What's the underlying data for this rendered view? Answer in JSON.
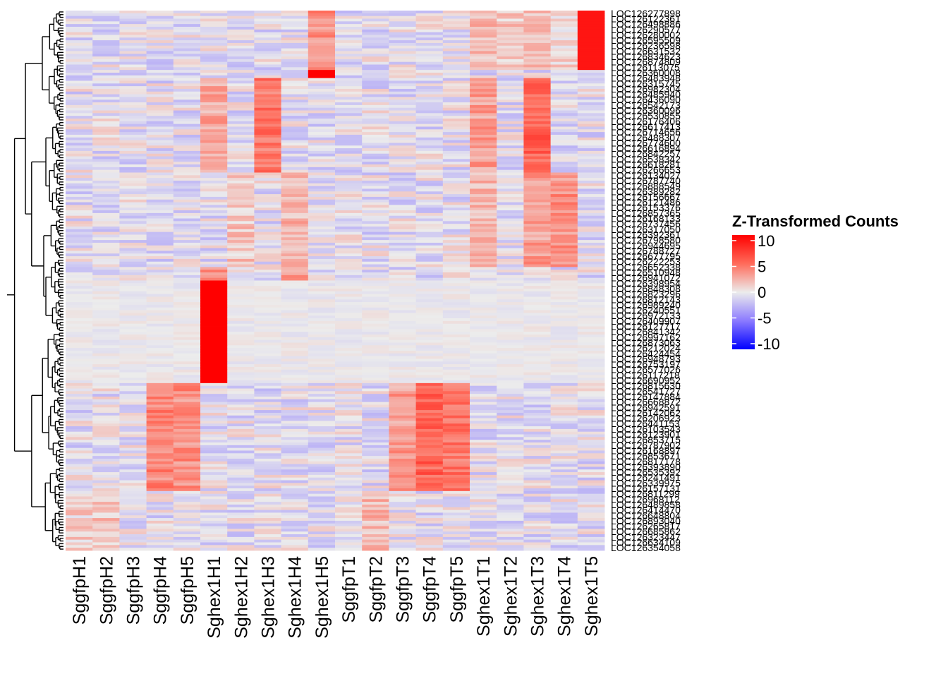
{
  "chart_data": {
    "type": "heatmap",
    "title": "",
    "xlabel": "",
    "ylabel": "",
    "columns": [
      "SggfpH1",
      "SggfpH2",
      "SggfpH3",
      "SggfpH4",
      "SggfpH5",
      "Sghex1H1",
      "Sghex1H2",
      "Sghex1H3",
      "Sghex1H4",
      "Sghex1H5",
      "SggfpT1",
      "SggfpT2",
      "SggfpT3",
      "SggfpT4",
      "SggfpT5",
      "Sghex1T1",
      "Sghex1T2",
      "Sghex1T3",
      "Sghex1T4",
      "Sghex1T5"
    ],
    "first_row_label": "LOC126277898",
    "last_row_label": "LOC126354058",
    "row_count": 200,
    "row_label_prefix": "LOC126",
    "row_label_note": "gene identifiers overlap and are mostly illegible; only the first and last are readable",
    "row_dendrogram": true,
    "legend": {
      "title": "Z-Transformed Counts",
      "ticks": [
        10,
        5,
        0,
        -5,
        -10
      ],
      "range": [
        -10,
        10
      ],
      "colors": {
        "low": "#0000ff",
        "mid": "#ececec",
        "high": "#ff0000"
      },
      "placement": "right"
    },
    "blocks": [
      {
        "rows": [
          0,
          22
        ],
        "high_columns": {
          "Sghex1T5": 9,
          "Sghex1H5": 3.5,
          "Sghex1T1": 2,
          "Sghex1T2": 1.5,
          "Sghex1T3": 2,
          "Sghex1T4": 1
        }
      },
      {
        "rows": [
          22,
          25
        ],
        "high_columns": {
          "Sghex1H5": 10
        }
      },
      {
        "rows": [
          25,
          60
        ],
        "high_columns": {
          "Sghex1H3": 4.5,
          "Sghex1T3": 5.5,
          "Sghex1T1": 3,
          "Sghex1H1": 2.5
        }
      },
      {
        "rows": [
          60,
          95
        ],
        "high_columns": {
          "Sghex1T4": 3.5,
          "Sghex1T3": 3,
          "Sghex1T1": 2,
          "Sghex1H4": 2,
          "Sghex1H2": 1.5
        }
      },
      {
        "rows": [
          95,
          100
        ],
        "high_columns": {
          "Sghex1H1": 4,
          "Sghex1H4": 3
        }
      },
      {
        "rows": [
          100,
          138
        ],
        "high_columns": {
          "Sghex1H1": 10
        }
      },
      {
        "rows": [
          138,
          178
        ],
        "high_columns": {
          "SggfpT4": 5.5,
          "SggfpT5": 4.5,
          "SggfpH4": 4,
          "SggfpH5": 3.5,
          "SggfpT3": 3
        }
      },
      {
        "rows": [
          178,
          200
        ],
        "high_columns": {
          "SggfpH1": 1,
          "SggfpH2": 1.5,
          "SggfpT2": 2
        }
      }
    ]
  }
}
